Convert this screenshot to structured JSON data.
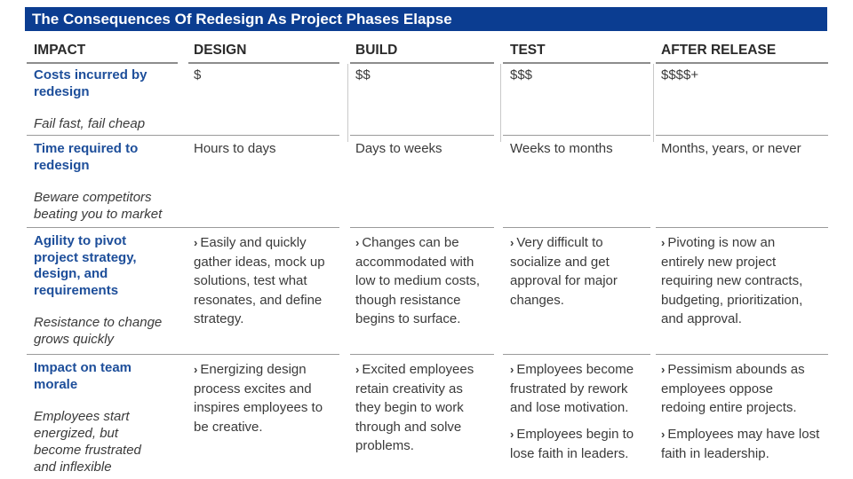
{
  "title": "The Consequences Of Redesign As Project Phases Elapse",
  "headers": [
    "IMPACT",
    "DESIGN",
    "BUILD",
    "TEST",
    "AFTER RELEASE"
  ],
  "bullet_glyph": "›",
  "rows": [
    {
      "impact": "Costs incurred by redesign",
      "note": "Fail fast, fail cheap",
      "design": "$",
      "build": "$$",
      "test": "$$$",
      "after": "$$$$+"
    },
    {
      "impact": "Time required to redesign",
      "note": "Beware competitors beating you to market",
      "design": "Hours to days",
      "build": "Days to weeks",
      "test": "Weeks to months",
      "after": "Months, years, or never"
    },
    {
      "impact": "Agility to pivot project strategy, design, and requirements",
      "note": "Resistance to change grows quickly",
      "design": "Easily and quickly gather ideas, mock up solutions, test what resonates, and define strategy.",
      "build": "Changes can be accommodated with low to medium costs, though resistance begins to surface.",
      "test": "Very difficult to socialize and get approval for major changes.",
      "after": "Pivoting is now an entirely new project requiring new contracts, budgeting, prioritization, and approval."
    },
    {
      "impact": "Impact on team morale",
      "note": "Employees start energized, but become frustrated and inflexible",
      "design": "Energizing design process excites and inspires employees to be creative.",
      "build": "Excited employees retain creativity as they begin to work through and solve problems.",
      "test": "Employees become frustrated by rework and lose motivation.",
      "test2": "Employees begin to lose faith in leaders.",
      "after": "Pessimism abounds as employees oppose redoing entire projects.",
      "after2": "Employees may have lost faith in leadership."
    }
  ]
}
